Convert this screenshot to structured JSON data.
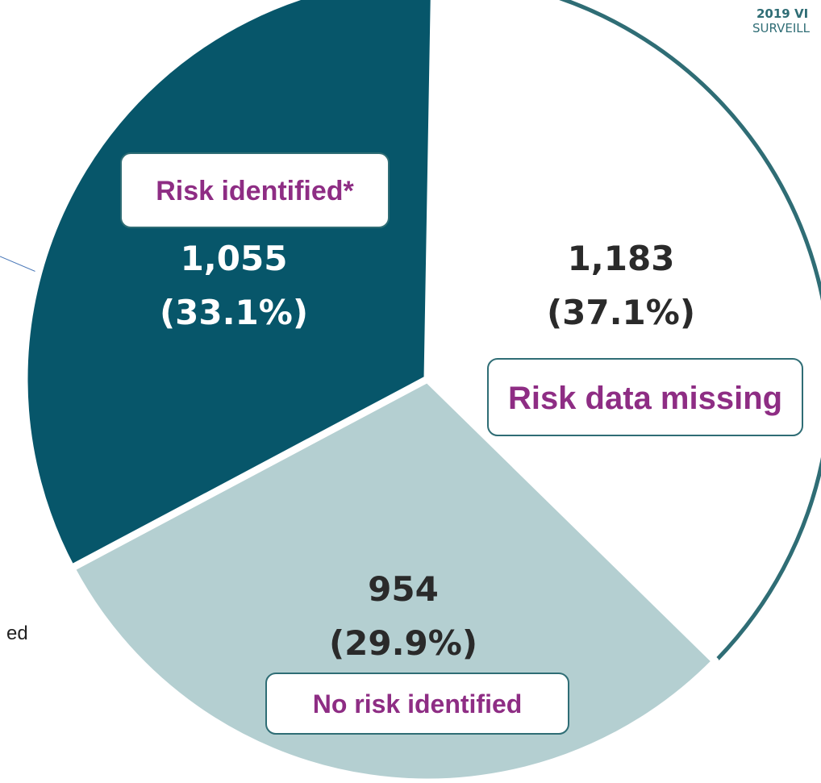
{
  "header": {
    "line1": "2019 VI",
    "line2": "SURVEILL"
  },
  "side_text": "ed",
  "chart_data": {
    "type": "pie",
    "categories": [
      "Risk data missing",
      "No risk identified",
      "Risk identified*"
    ],
    "values": [
      1183,
      954,
      1055
    ],
    "value_labels": [
      "1,183",
      "954",
      "1,055"
    ],
    "percentages": [
      37.1,
      29.9,
      33.1
    ],
    "percentage_labels": [
      "(37.1%)",
      "(29.9%)",
      "(33.1%)"
    ],
    "colors": [
      "#ffffff",
      "#b4cfd1",
      "#07566a"
    ]
  }
}
